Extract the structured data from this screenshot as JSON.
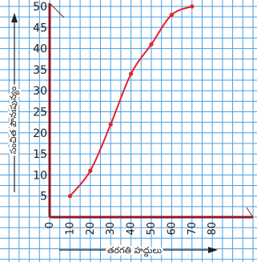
{
  "chart_data": {
    "type": "line",
    "xlabel": "తరగతి హద్దులు",
    "ylabel": "సంచిత పౌనఃపున్యం",
    "x_ticks": [
      "0",
      "10",
      "20",
      "30",
      "40",
      "50",
      "60",
      "70",
      "80"
    ],
    "y_ticks": [
      "5",
      "10",
      "15",
      "20",
      "25",
      "30",
      "35",
      "40",
      "45",
      "50"
    ],
    "xlim": [
      0,
      90
    ],
    "ylim": [
      0,
      50
    ],
    "grid": true,
    "series": [
      {
        "x": [
          10,
          20,
          30,
          40,
          50,
          60,
          70
        ],
        "y": [
          5,
          11,
          22,
          34,
          41,
          48,
          50
        ]
      }
    ],
    "colors": {
      "grid": "#4a9fe0",
      "axis": "#8b1a2b",
      "curve": "#e8202a",
      "text": "#222222"
    }
  }
}
